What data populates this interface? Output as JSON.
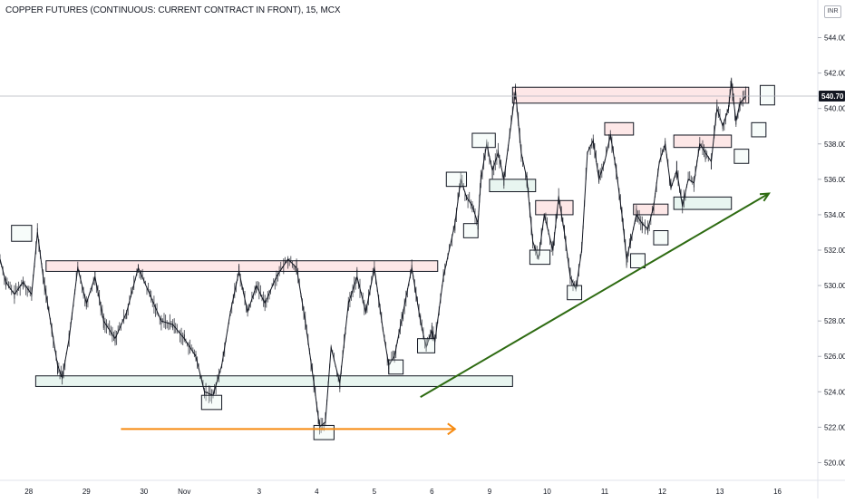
{
  "header": {
    "title": "COPPER FUTURES (CONTINUOUS: CURRENT CONTRACT IN FRONT), 15, MCX",
    "currency": "INR"
  },
  "colors": {
    "price": "#131722",
    "resistance_fill": "#fde7e7",
    "support_fill": "#e8f5f0",
    "box_stroke": "#131722",
    "trendline": "#2e6b12",
    "arrow": "#f68a10",
    "last_price_badge": "#131722"
  },
  "chart_data": {
    "type": "line",
    "title": "COPPER FUTURES (CONTINUOUS: CURRENT CONTRACT IN FRONT), 15, MCX",
    "ylim": [
      519.0,
      545.0
    ],
    "y_ticks": [
      520,
      522,
      524,
      526,
      528,
      530,
      532,
      534,
      536,
      538,
      540,
      542,
      544
    ],
    "y_tick_labels": [
      "520.00",
      "522.00",
      "524.00",
      "526.00",
      "528.00",
      "530.00",
      "532.00",
      "534.00",
      "536.00",
      "538.00",
      "540.00",
      "542.00",
      "544.00"
    ],
    "x_ticks": [
      {
        "label": "28",
        "t": 0.5
      },
      {
        "label": "29",
        "t": 1.5
      },
      {
        "label": "30",
        "t": 2.5
      },
      {
        "label": "Nov",
        "t": 3.2
      },
      {
        "label": "3",
        "t": 4.5
      },
      {
        "label": "4",
        "t": 5.5
      },
      {
        "label": "5",
        "t": 6.5
      },
      {
        "label": "6",
        "t": 7.5
      },
      {
        "label": "9",
        "t": 8.5
      },
      {
        "label": "10",
        "t": 9.5
      },
      {
        "label": "11",
        "t": 10.5
      },
      {
        "label": "12",
        "t": 11.5
      },
      {
        "label": "13",
        "t": 12.5
      },
      {
        "label": "16",
        "t": 13.5
      }
    ],
    "xlim": [
      0,
      14.2
    ],
    "last_price": 540.7,
    "last_price_label": "540.70",
    "series": [
      {
        "values": [
          [
            0.0,
            531.5
          ],
          [
            0.1,
            530.2
          ],
          [
            0.25,
            529.5
          ],
          [
            0.4,
            530.2
          ],
          [
            0.55,
            529.5
          ],
          [
            0.65,
            533.0
          ],
          [
            0.75,
            530.5
          ],
          [
            0.9,
            527.5
          ],
          [
            1.0,
            525.5
          ],
          [
            1.08,
            524.8
          ],
          [
            1.2,
            527.0
          ],
          [
            1.35,
            531.0
          ],
          [
            1.5,
            529.0
          ],
          [
            1.65,
            530.5
          ],
          [
            1.8,
            528.0
          ],
          [
            2.0,
            527.0
          ],
          [
            2.2,
            528.5
          ],
          [
            2.4,
            531.0
          ],
          [
            2.6,
            529.5
          ],
          [
            2.8,
            528.0
          ],
          [
            3.0,
            527.8
          ],
          [
            3.2,
            527.0
          ],
          [
            3.4,
            526.0
          ],
          [
            3.55,
            524.0
          ],
          [
            3.7,
            523.8
          ],
          [
            3.85,
            525.5
          ],
          [
            4.0,
            528.5
          ],
          [
            4.15,
            530.8
          ],
          [
            4.3,
            528.5
          ],
          [
            4.45,
            530.0
          ],
          [
            4.6,
            529.0
          ],
          [
            4.8,
            530.5
          ],
          [
            5.0,
            531.5
          ],
          [
            5.15,
            531.0
          ],
          [
            5.3,
            528.0
          ],
          [
            5.45,
            524.5
          ],
          [
            5.55,
            522.0
          ],
          [
            5.65,
            522.3
          ],
          [
            5.75,
            526.5
          ],
          [
            5.9,
            524.5
          ],
          [
            6.05,
            529.0
          ],
          [
            6.2,
            530.5
          ],
          [
            6.35,
            528.5
          ],
          [
            6.5,
            531.0
          ],
          [
            6.65,
            527.5
          ],
          [
            6.75,
            525.5
          ],
          [
            6.85,
            526.0
          ],
          [
            7.0,
            528.5
          ],
          [
            7.15,
            531.0
          ],
          [
            7.3,
            528.0
          ],
          [
            7.4,
            526.5
          ],
          [
            7.5,
            527.5
          ],
          [
            7.55,
            526.8
          ],
          [
            7.7,
            530.5
          ],
          [
            7.9,
            533.5
          ],
          [
            8.0,
            536.0
          ],
          [
            8.1,
            535.0
          ],
          [
            8.2,
            534.5
          ],
          [
            8.3,
            533.5
          ],
          [
            8.35,
            536.0
          ],
          [
            8.45,
            538.0
          ],
          [
            8.55,
            536.5
          ],
          [
            8.65,
            537.5
          ],
          [
            8.75,
            536.0
          ],
          [
            8.85,
            538.5
          ],
          [
            8.95,
            541.0
          ],
          [
            9.05,
            537.5
          ],
          [
            9.15,
            536.0
          ],
          [
            9.25,
            532.5
          ],
          [
            9.35,
            531.5
          ],
          [
            9.45,
            534.0
          ],
          [
            9.6,
            532.0
          ],
          [
            9.7,
            535.0
          ],
          [
            9.8,
            533.0
          ],
          [
            9.9,
            530.5
          ],
          [
            10.0,
            529.8
          ],
          [
            10.1,
            532.0
          ],
          [
            10.2,
            537.5
          ],
          [
            10.3,
            538.2
          ],
          [
            10.4,
            536.0
          ],
          [
            10.5,
            537.0
          ],
          [
            10.6,
            538.5
          ],
          [
            10.7,
            536.5
          ],
          [
            10.8,
            534.0
          ],
          [
            10.88,
            531.5
          ],
          [
            10.95,
            532.5
          ],
          [
            11.05,
            534.0
          ],
          [
            11.15,
            533.5
          ],
          [
            11.25,
            533.2
          ],
          [
            11.35,
            534.5
          ],
          [
            11.45,
            537.0
          ],
          [
            11.55,
            538.0
          ],
          [
            11.65,
            535.5
          ],
          [
            11.75,
            536.5
          ],
          [
            11.85,
            534.5
          ],
          [
            11.95,
            536.0
          ],
          [
            12.05,
            535.8
          ],
          [
            12.15,
            538.0
          ],
          [
            12.25,
            537.5
          ],
          [
            12.35,
            537.0
          ],
          [
            12.45,
            540.0
          ],
          [
            12.55,
            539.0
          ],
          [
            12.65,
            540.0
          ],
          [
            12.7,
            541.5
          ],
          [
            12.78,
            539.3
          ],
          [
            12.85,
            540.3
          ],
          [
            12.95,
            540.7
          ]
        ]
      }
    ],
    "annotations": {
      "resistance_zones": [
        {
          "t0": 0.8,
          "t1": 7.6,
          "y0": 530.8,
          "y1": 531.4
        },
        {
          "t0": 8.9,
          "t1": 13.0,
          "y0": 540.3,
          "y1": 541.2
        },
        {
          "t0": 10.5,
          "t1": 11.0,
          "y0": 538.5,
          "y1": 539.2
        },
        {
          "t0": 11.7,
          "t1": 12.7,
          "y0": 537.8,
          "y1": 538.5
        },
        {
          "t0": 9.3,
          "t1": 9.95,
          "y0": 534.0,
          "y1": 534.8
        },
        {
          "t0": 11.0,
          "t1": 11.6,
          "y0": 534.0,
          "y1": 534.6
        }
      ],
      "support_zones": [
        {
          "t0": 0.62,
          "t1": 8.9,
          "y0": 524.3,
          "y1": 524.9
        },
        {
          "t0": 8.5,
          "t1": 9.3,
          "y0": 535.3,
          "y1": 536.0
        },
        {
          "t0": 11.7,
          "t1": 12.7,
          "y0": 534.3,
          "y1": 535.0
        }
      ],
      "pivot_boxes": [
        {
          "t0": 0.2,
          "t1": 0.55,
          "y0": 532.5,
          "y1": 533.4
        },
        {
          "t0": 3.5,
          "t1": 3.85,
          "y0": 523.0,
          "y1": 523.8
        },
        {
          "t0": 5.45,
          "t1": 5.8,
          "y0": 521.3,
          "y1": 522.1
        },
        {
          "t0": 6.75,
          "t1": 7.0,
          "y0": 525.0,
          "y1": 525.8
        },
        {
          "t0": 7.25,
          "t1": 7.55,
          "y0": 526.2,
          "y1": 527.0
        },
        {
          "t0": 7.75,
          "t1": 8.1,
          "y0": 535.6,
          "y1": 536.4
        },
        {
          "t0": 8.05,
          "t1": 8.3,
          "y0": 532.7,
          "y1": 533.5
        },
        {
          "t0": 8.2,
          "t1": 8.6,
          "y0": 537.8,
          "y1": 538.6
        },
        {
          "t0": 9.2,
          "t1": 9.55,
          "y0": 531.2,
          "y1": 532.0
        },
        {
          "t0": 9.85,
          "t1": 10.1,
          "y0": 529.2,
          "y1": 530.0
        },
        {
          "t0": 10.95,
          "t1": 11.2,
          "y0": 531.0,
          "y1": 531.8
        },
        {
          "t0": 11.35,
          "t1": 11.6,
          "y0": 532.3,
          "y1": 533.1
        },
        {
          "t0": 12.75,
          "t1": 13.0,
          "y0": 536.9,
          "y1": 537.7
        },
        {
          "t0": 13.05,
          "t1": 13.3,
          "y0": 538.4,
          "y1": 539.2
        },
        {
          "t0": 13.2,
          "t1": 13.45,
          "y0": 540.2,
          "y1": 541.3
        }
      ],
      "trendline": {
        "t0": 7.3,
        "y0": 523.7,
        "t1": 13.35,
        "y1": 535.2
      },
      "arrow": {
        "t0": 2.1,
        "y0": 521.9,
        "t1": 7.9,
        "y1": 521.9
      }
    }
  }
}
